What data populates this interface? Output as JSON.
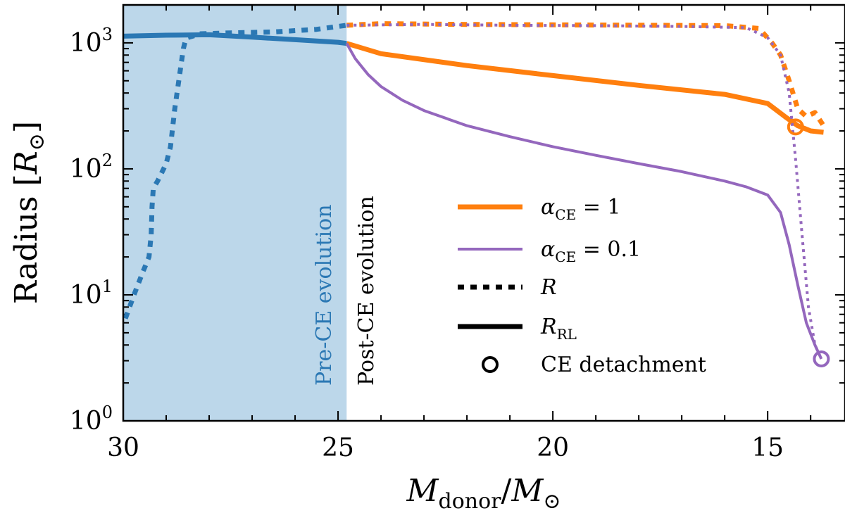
{
  "chart_data": {
    "type": "line",
    "xlabel": "M_donor/M_⊙",
    "ylabel": "Radius [R_⊙]",
    "xlim": [
      30,
      13.2
    ],
    "ylim": [
      1,
      2000
    ],
    "yscale": "log",
    "x_ticks": [
      30,
      25,
      20,
      15
    ],
    "y_ticks": [
      {
        "value": 1,
        "base": "10",
        "exp": "0"
      },
      {
        "value": 10,
        "base": "10",
        "exp": "1"
      },
      {
        "value": 100,
        "base": "10",
        "exp": "2"
      },
      {
        "value": 1000,
        "base": "10",
        "exp": "3"
      }
    ],
    "shaded_region": {
      "x_from": 30,
      "x_to": 24.8,
      "color": "#bcd7ea"
    },
    "region_labels": {
      "pre": {
        "text": "Pre-CE evolution",
        "color": "#2b78b4"
      },
      "post": {
        "text": "Post-CE evolution",
        "color": "#000000"
      }
    },
    "series": [
      {
        "name": "pre_R",
        "color": "#2b78b4",
        "style": "dotted",
        "x": [
          29.95,
          29.75,
          29.55,
          29.4,
          29.35,
          29.33,
          29.3,
          29.25,
          29.2,
          29.0,
          28.9,
          28.8,
          28.6,
          28.55,
          28.5,
          28.2,
          27.5,
          26.5,
          25.5,
          24.8
        ],
        "y": [
          6.5,
          10,
          15,
          20,
          30,
          50,
          70,
          75,
          80,
          110,
          150,
          300,
          900,
          1050,
          1100,
          1180,
          1200,
          1220,
          1280,
          1380
        ]
      },
      {
        "name": "pre_RRL",
        "color": "#2b78b4",
        "style": "solid",
        "x": [
          30,
          29,
          28,
          27,
          26,
          25,
          24.8
        ],
        "y": [
          1130,
          1150,
          1160,
          1110,
          1060,
          1010,
          990
        ]
      },
      {
        "name": "alpha1_R",
        "color": "#ff7f0e",
        "style": "dotted",
        "x": [
          24.8,
          24,
          22,
          20,
          18,
          16,
          15.2,
          14.9,
          14.7,
          14.5,
          14.3,
          14.1,
          13.9,
          13.7
        ],
        "y": [
          1380,
          1420,
          1400,
          1390,
          1380,
          1370,
          1300,
          1000,
          800,
          500,
          300,
          260,
          280,
          220
        ]
      },
      {
        "name": "alpha1_RRL",
        "color": "#ff7f0e",
        "style": "solid",
        "x": [
          24.8,
          24,
          22,
          20,
          18,
          16,
          15,
          14.6,
          14.3,
          14.0,
          13.7
        ],
        "y": [
          990,
          820,
          660,
          550,
          460,
          390,
          330,
          260,
          220,
          200,
          195
        ]
      },
      {
        "name": "alpha01_R",
        "color": "#9467bd",
        "style": "dotted",
        "x": [
          24.8,
          23,
          21,
          19,
          17,
          15.5,
          15,
          14.7,
          14.5,
          14.35,
          14.2,
          14.05,
          13.9,
          13.75
        ],
        "y": [
          1380,
          1400,
          1380,
          1370,
          1350,
          1320,
          1100,
          800,
          400,
          120,
          30,
          8,
          4,
          3.1
        ]
      },
      {
        "name": "alpha01_RRL",
        "color": "#9467bd",
        "style": "solid",
        "x": [
          24.8,
          24.6,
          24.3,
          24,
          23.5,
          23,
          22,
          21,
          20,
          19,
          18,
          17,
          16,
          15.5,
          15,
          14.7,
          14.5,
          14.3,
          14.1,
          13.9,
          13.75
        ],
        "y": [
          990,
          750,
          560,
          450,
          350,
          290,
          220,
          180,
          150,
          128,
          110,
          95,
          80,
          72,
          62,
          45,
          25,
          12,
          6,
          4,
          3.1
        ]
      }
    ],
    "markers": [
      {
        "name": "alpha1_detachment",
        "x": 14.35,
        "y": 215,
        "color": "#ff7f0e"
      },
      {
        "name": "alpha01_detachment",
        "x": 13.75,
        "y": 3.1,
        "color": "#9467bd"
      }
    ],
    "legend": {
      "placement": "lower-right",
      "entries": [
        {
          "key": "solid-orange",
          "label_base": "α",
          "label_sub": "CE",
          "label_rest": " = 1",
          "color": "#ff7f0e"
        },
        {
          "key": "solid-purple",
          "label_base": "α",
          "label_sub": "CE",
          "label_rest": " = 0.1",
          "color": "#9467bd"
        },
        {
          "key": "dotted-black",
          "label_base": "R",
          "label_sub": "",
          "label_rest": "",
          "color": "#000000"
        },
        {
          "key": "solid-black",
          "label_base": "R",
          "label_sub": "RL",
          "label_rest": "",
          "color": "#000000"
        },
        {
          "key": "circle-black",
          "label_base": "CE detachment",
          "label_sub": "",
          "label_rest": "",
          "color": "#000000"
        }
      ]
    }
  }
}
